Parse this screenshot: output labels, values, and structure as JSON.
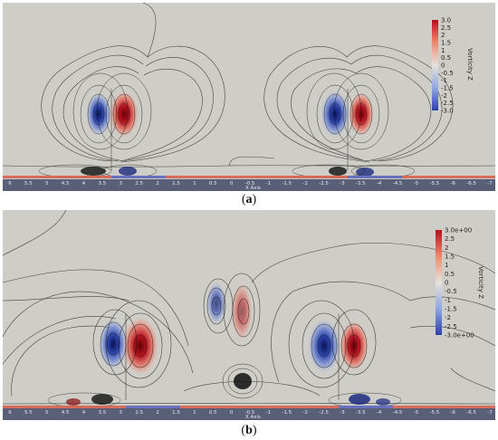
{
  "panels": [
    {
      "id": "a",
      "caption_letter": "a",
      "axis_ticks": [
        "6",
        "5.5",
        "5",
        "4.5",
        "4",
        "3.5",
        "3",
        "2.5",
        "2",
        "1.5",
        "1",
        "0.5",
        "0",
        "-0.5",
        "-1",
        "-1.5",
        "-2",
        "-2.5",
        "-3",
        "-3.5",
        "-4",
        "-4.5",
        "-5",
        "-5.5",
        "-6",
        "-6.5",
        "-7"
      ],
      "axis_title": "X Axis",
      "colorbar": {
        "title": "Vorticity Z",
        "ticks": [
          "3.0",
          "2.5",
          "2",
          "1.5",
          "1",
          "0.5",
          "0",
          "-0.5",
          "-1",
          "-1.5",
          "-2",
          "-2.5",
          "-3.0"
        ]
      }
    },
    {
      "id": "b",
      "caption_letter": "b",
      "axis_ticks": [
        "6",
        "5.5",
        "5",
        "4.5",
        "4",
        "3.5",
        "3",
        "2.5",
        "2",
        "1.5",
        "1",
        "0.5",
        "0",
        "-0.5",
        "-1",
        "-1.5",
        "-2",
        "-2.5",
        "-3",
        "-3.5",
        "-4",
        "-4.5",
        "-5",
        "-5.5",
        "-6",
        "-6.5",
        "-7"
      ],
      "axis_title": "X Axis",
      "colorbar": {
        "title": "Vorticity Z",
        "ticks": [
          "3.0e+00",
          "2.5",
          "2",
          "1.5",
          "1",
          "0.5",
          "0",
          "-0.5",
          "-1",
          "-1.5",
          "-2",
          "-2.5",
          "-3.0e+00"
        ]
      }
    }
  ],
  "colors": {
    "positive": "#b40f1e",
    "negative": "#2c3fa8",
    "background": "#cfcdc7",
    "axis_bar": "#5a5f78"
  }
}
